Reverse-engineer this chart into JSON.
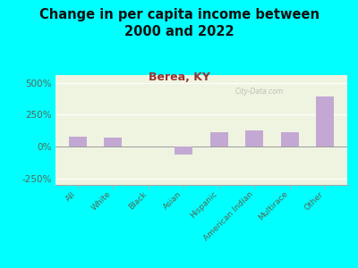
{
  "title": "Change in per capita income between\n2000 and 2022",
  "subtitle": "Berea, KY",
  "categories": [
    "All",
    "White",
    "Black",
    "Asian",
    "Hispanic",
    "American Indian",
    "Multirace",
    "Other"
  ],
  "values": [
    75,
    72,
    2,
    -60,
    110,
    130,
    115,
    395
  ],
  "bar_color": "#c4a8d4",
  "background_outer": "#00FFFF",
  "background_inner": "#eef4e0",
  "title_color": "#111111",
  "subtitle_color": "#993333",
  "tick_label_color": "#556655",
  "ylim": [
    -300,
    560
  ],
  "yticks": [
    -250,
    0,
    250,
    500
  ],
  "watermark": "City-Data.com",
  "title_fontsize": 10.5,
  "subtitle_fontsize": 9
}
